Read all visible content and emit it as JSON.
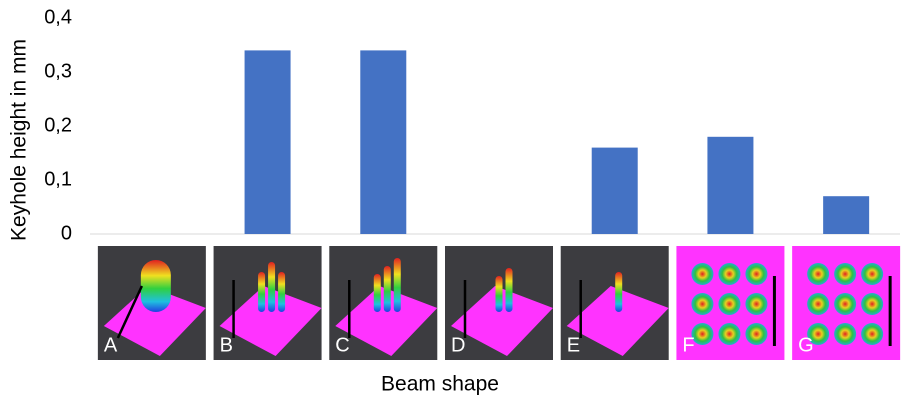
{
  "chart_data": {
    "type": "bar",
    "y_label": "Keyhole height in mm",
    "x_label": "Beam shape",
    "categories": [
      "A",
      "B",
      "C",
      "D",
      "E",
      "F",
      "G"
    ],
    "values": [
      0,
      0.34,
      0.34,
      0,
      0.16,
      0.18,
      0.07
    ],
    "color": "#4472c4",
    "ylim": [
      0,
      0.4
    ],
    "yticks": [
      0,
      {
        "value": 0.1,
        "label": "0,1"
      },
      {
        "value": 0.2,
        "label": "0,2"
      },
      {
        "value": 0.3,
        "label": "0,3"
      },
      {
        "value": 0.4,
        "label": "0,4"
      }
    ]
  }
}
